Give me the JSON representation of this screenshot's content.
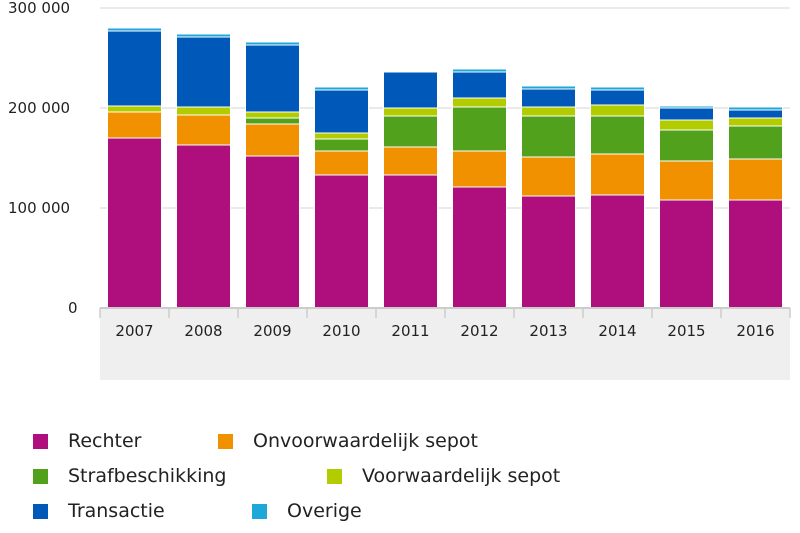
{
  "chart_data": {
    "type": "bar",
    "stacked": true,
    "categories": [
      "2007",
      "2008",
      "2009",
      "2010",
      "2011",
      "2012",
      "2013",
      "2014",
      "2015",
      "2016"
    ],
    "ylim": [
      0,
      300000
    ],
    "yticks": [
      0,
      100000,
      200000,
      300000
    ],
    "ytick_labels": [
      "0",
      "100 000",
      "200 000",
      "300 000"
    ],
    "grid": true,
    "legend_position": "bottom",
    "series": [
      {
        "name": "Rechter",
        "color": "#ae0f7d",
        "values": [
          170000,
          163000,
          152000,
          133000,
          133000,
          121000,
          112000,
          113000,
          108000,
          108000
        ]
      },
      {
        "name": "Onvoorwaardelijk sepot",
        "color": "#f29100",
        "values": [
          26000,
          30000,
          32000,
          24000,
          28000,
          36000,
          39000,
          41000,
          39000,
          41000
        ]
      },
      {
        "name": "Strafbeschikking",
        "color": "#52a11d",
        "values": [
          0,
          0,
          6000,
          12000,
          31000,
          44000,
          41000,
          38000,
          31000,
          33000
        ]
      },
      {
        "name": "Voorwaardelijk sepot",
        "color": "#b2cc00",
        "values": [
          6000,
          8000,
          6000,
          6000,
          8000,
          9000,
          9000,
          11000,
          10000,
          8000
        ]
      },
      {
        "name": "Transactie",
        "color": "#0058b8",
        "values": [
          75000,
          70000,
          67000,
          43000,
          36000,
          26000,
          18000,
          15000,
          12000,
          8000
        ]
      },
      {
        "name": "Overige",
        "color": "#1ea7d9",
        "values": [
          3000,
          3000,
          3000,
          3000,
          500,
          3000,
          3000,
          3000,
          2000,
          3000
        ]
      }
    ]
  }
}
